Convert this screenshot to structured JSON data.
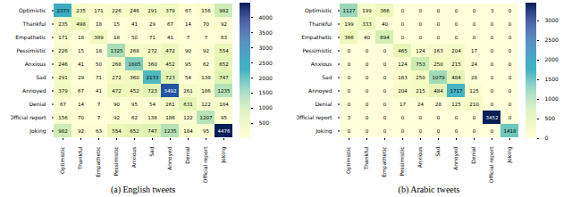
{
  "chart_data": [
    {
      "type": "heatmap",
      "caption": "(a) English tweets",
      "data_labels": true,
      "categories": [
        "Optimistic",
        "Thankful",
        "Empathetic",
        "Pessimistic",
        "Anxious",
        "Sad",
        "Annoyed",
        "Denial",
        "Official report",
        "Joking"
      ],
      "values": [
        [
          2373,
          235,
          171,
          226,
          246,
          291,
          379,
          67,
          156,
          982
        ],
        [
          235,
          498,
          18,
          15,
          41,
          29,
          67,
          14,
          70,
          92
        ],
        [
          171,
          18,
          389,
          18,
          50,
          71,
          41,
          7,
          7,
          63
        ],
        [
          226,
          15,
          18,
          1325,
          268,
          272,
          472,
          90,
          92,
          554
        ],
        [
          246,
          41,
          50,
          268,
          1685,
          360,
          452,
          95,
          62,
          652
        ],
        [
          291,
          29,
          71,
          272,
          360,
          2133,
          723,
          54,
          138,
          747
        ],
        [
          379,
          67,
          41,
          472,
          452,
          723,
          3492,
          261,
          186,
          1235
        ],
        [
          67,
          14,
          7,
          90,
          95,
          54,
          261,
          631,
          122,
          184
        ],
        [
          156,
          70,
          7,
          92,
          62,
          138,
          186,
          122,
          1207,
          95
        ],
        [
          982,
          92,
          63,
          554,
          652,
          747,
          1235,
          184,
          95,
          4476
        ]
      ],
      "colorbar": {
        "range": [
          0,
          4476
        ],
        "ticks": [
          500,
          1000,
          1500,
          2000,
          2500,
          3000,
          3500,
          4000
        ]
      }
    },
    {
      "type": "heatmap",
      "caption": "(b) Arabic tweets",
      "data_labels": true,
      "categories": [
        "Optimistic",
        "Thankful",
        "Empathetic",
        "Pessimistic",
        "Anxious",
        "Sad",
        "Annoyed",
        "Denial",
        "Official report",
        "Joking"
      ],
      "values": [
        [
          1127,
          199,
          366,
          0,
          0,
          0,
          0,
          0,
          3,
          0
        ],
        [
          199,
          333,
          40,
          0,
          0,
          0,
          0,
          0,
          0,
          0
        ],
        [
          366,
          40,
          694,
          0,
          0,
          0,
          0,
          0,
          0,
          0
        ],
        [
          0,
          0,
          0,
          465,
          124,
          163,
          204,
          17,
          0,
          0
        ],
        [
          0,
          0,
          0,
          124,
          753,
          250,
          215,
          24,
          0,
          0
        ],
        [
          0,
          0,
          0,
          163,
          250,
          1079,
          484,
          28,
          0,
          0
        ],
        [
          0,
          0,
          0,
          204,
          215,
          484,
          1717,
          125,
          0,
          0
        ],
        [
          0,
          0,
          0,
          17,
          24,
          28,
          125,
          210,
          0,
          0
        ],
        [
          3,
          0,
          0,
          0,
          0,
          0,
          0,
          0,
          3452,
          0
        ],
        [
          0,
          0,
          0,
          0,
          0,
          0,
          0,
          0,
          0,
          1418
        ]
      ],
      "colorbar": {
        "range": [
          0,
          3452
        ],
        "ticks": [
          0,
          500,
          1000,
          1500,
          2000,
          2500,
          3000
        ]
      }
    }
  ]
}
